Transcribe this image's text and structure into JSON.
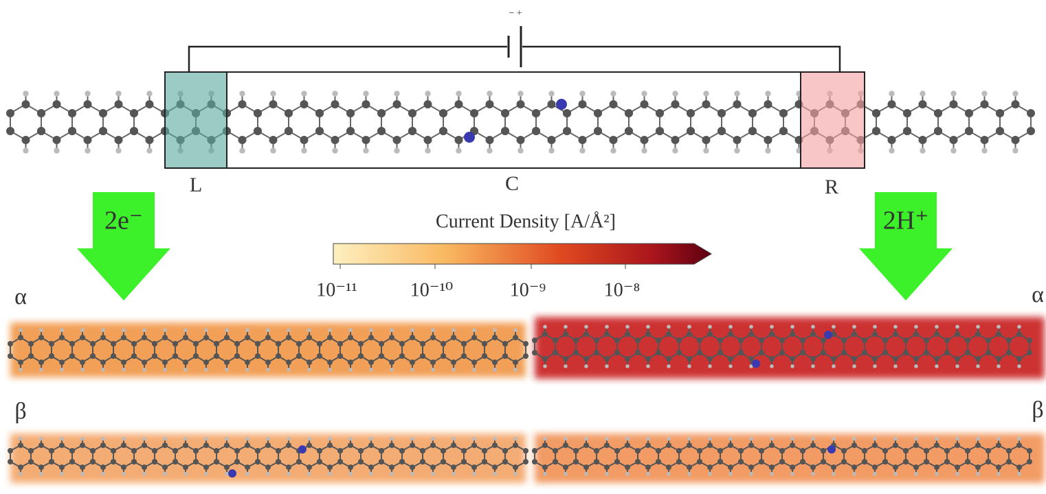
{
  "circuit": {
    "battery_polarity": "− +"
  },
  "regions": {
    "left": "L",
    "center": "C",
    "right": "R"
  },
  "arrows": {
    "left": "2e⁻",
    "right": "2H⁺"
  },
  "colorbar": {
    "title": "Current Density [A/Å²]",
    "ticks": [
      "10⁻¹¹",
      "10⁻¹⁰",
      "10⁻⁹",
      "10⁻⁸"
    ]
  },
  "panels": {
    "alpha_left": "α",
    "alpha_right": "α",
    "beta_left": "β",
    "beta_right": "β"
  }
}
